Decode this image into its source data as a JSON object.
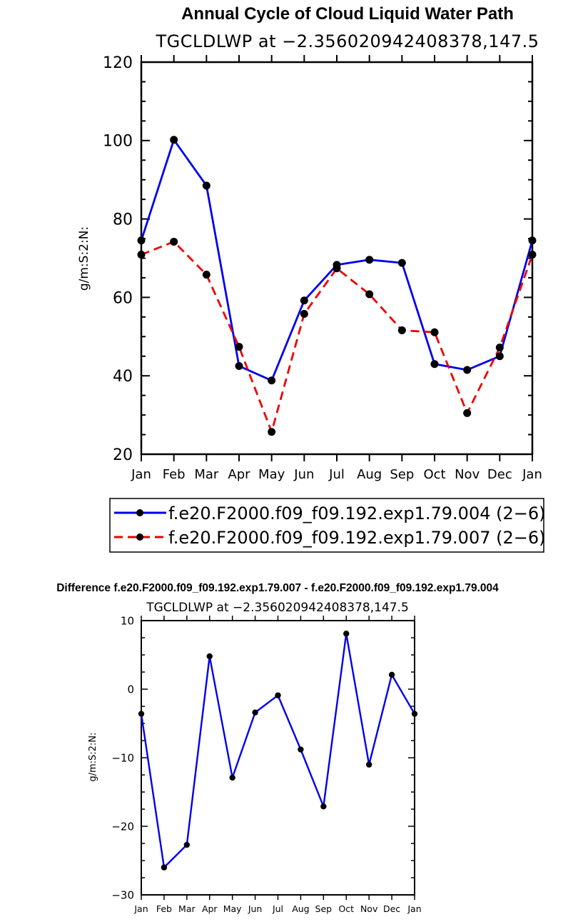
{
  "chart_data": [
    {
      "type": "line",
      "title": "Annual Cycle of Cloud Liquid Water Path",
      "subtitle": "TGCLDLWP at −2.356020942408378,147.5",
      "ylabel": "g/m:S:2:N:",
      "xlabel": "",
      "ylim": [
        20,
        120
      ],
      "yticks": [
        20,
        40,
        60,
        80,
        100,
        120
      ],
      "categories": [
        "Jan",
        "Feb",
        "Mar",
        "Apr",
        "May",
        "Jun",
        "Jul",
        "Aug",
        "Sep",
        "Oct",
        "Nov",
        "Dec",
        "Jan"
      ],
      "series": [
        {
          "name": "f.e20.F2000.f09_f09.192.exp1.79.004 (2−6)",
          "color": "#0000ee",
          "dash": "solid",
          "values": [
            74.5,
            100.2,
            88.5,
            42.5,
            38.8,
            59.2,
            68.3,
            69.6,
            68.8,
            43.0,
            41.5,
            45.0,
            74.5
          ]
        },
        {
          "name": "f.e20.F2000.f09_f09.192.exp1.79.007 (2−6)",
          "color": "#ee0000",
          "dash": "dashed",
          "values": [
            70.9,
            74.2,
            65.8,
            47.4,
            25.7,
            55.8,
            67.4,
            60.8,
            51.6,
            51.1,
            30.5,
            47.2,
            70.9
          ]
        }
      ]
    },
    {
      "type": "line",
      "title": "Difference f.e20.F2000.f09_f09.192.exp1.79.007 - f.e20.F2000.f09_f09.192.exp1.79.004",
      "subtitle": "TGCLDLWP at −2.356020942408378,147.5",
      "ylabel": "g/m:S:2:N:",
      "xlabel": "",
      "ylim": [
        -30,
        10
      ],
      "yticks": [
        -30,
        -20,
        -10,
        0,
        10
      ],
      "categories": [
        "Jan",
        "Feb",
        "Mar",
        "Apr",
        "May",
        "Jun",
        "Jul",
        "Aug",
        "Sep",
        "Oct",
        "Nov",
        "Dec",
        "Jan"
      ],
      "series": [
        {
          "name": "difference",
          "color": "#0000ee",
          "dash": "solid",
          "values": [
            -3.6,
            -26.0,
            -22.7,
            4.8,
            -12.9,
            -3.4,
            -0.9,
            -8.8,
            -17.1,
            8.1,
            -11.0,
            2.1,
            -3.6
          ]
        }
      ]
    }
  ]
}
